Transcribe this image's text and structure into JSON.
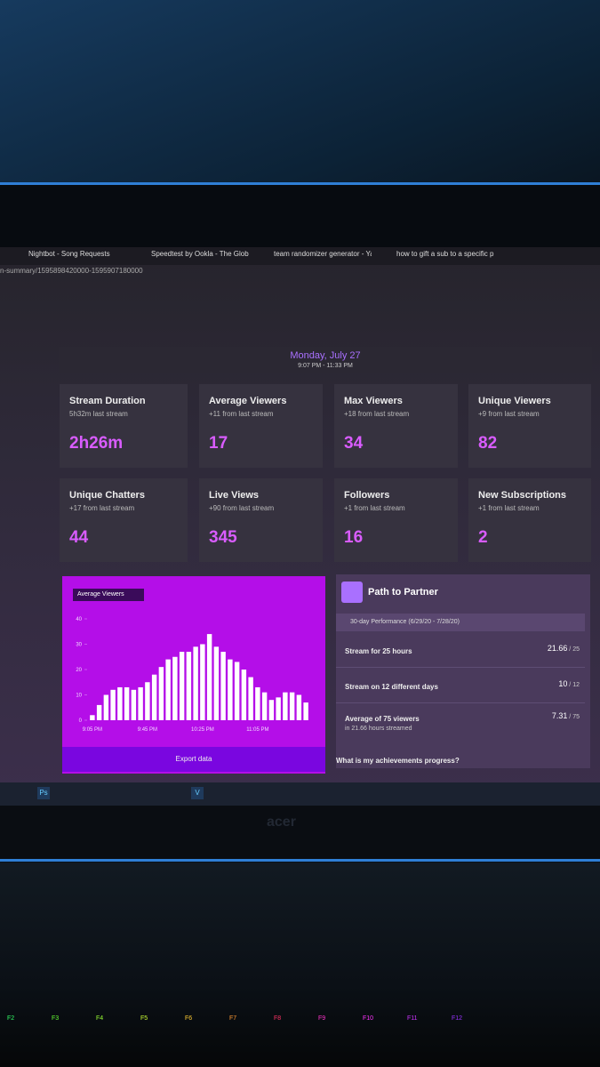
{
  "tabs": [
    "Nightbot - Song Requests",
    "Speedtest by Ookla - The Global",
    "team randomizer generator - Ya",
    "how to gift a sub to a specific p"
  ],
  "url": "n-summary/1595898420000-1595907180000",
  "header": {
    "date": "Monday, July 27",
    "time": "9:07 PM - 11:33 PM"
  },
  "stats": [
    {
      "title": "Stream Duration",
      "subtitle": "5h32m last stream",
      "value": "2h26m"
    },
    {
      "title": "Average Viewers",
      "subtitle": "+11 from last stream",
      "value": 17
    },
    {
      "title": "Max Viewers",
      "subtitle": "+18 from last stream",
      "value": 34
    },
    {
      "title": "Unique Viewers",
      "subtitle": "+9 from last stream",
      "value": 82
    },
    {
      "title": "Unique Chatters",
      "subtitle": "+17 from last stream",
      "value": 44
    },
    {
      "title": "Live Views",
      "subtitle": "+90 from last stream",
      "value": 345
    },
    {
      "title": "Followers",
      "subtitle": "+1 from last stream",
      "value": 16
    },
    {
      "title": "New Subscriptions",
      "subtitle": "+1 from last stream",
      "value": 2
    }
  ],
  "chart_data": {
    "type": "bar",
    "selector": "Average Viewers",
    "color": "#ffffff",
    "categories": [
      "9:05 PM",
      null,
      null,
      null,
      null,
      null,
      null,
      null,
      "9:45 PM",
      null,
      null,
      null,
      null,
      null,
      null,
      null,
      "10:25 PM",
      null,
      null,
      null,
      null,
      null,
      null,
      null,
      "11:05 PM",
      null,
      null,
      null,
      null,
      null,
      null,
      null
    ],
    "values": [
      2,
      6,
      10,
      12,
      13,
      13,
      12,
      13,
      15,
      18,
      21,
      24,
      25,
      27,
      27,
      29,
      30,
      34,
      29,
      27,
      24,
      23,
      20,
      17,
      13,
      11,
      8,
      9,
      11,
      11,
      10,
      7
    ],
    "ylim": [
      0,
      40
    ],
    "yticks": [
      0,
      10,
      20,
      30,
      40
    ],
    "button": "Export data"
  },
  "partner": {
    "title": "Path to Partner",
    "period": "30-day Performance (6/29/20 - 7/28/20)",
    "goals": [
      {
        "label": "Stream for 25 hours",
        "progress": 21.66,
        "target": 25
      },
      {
        "label": "Stream on 12 different days",
        "progress": 10,
        "target": 12
      },
      {
        "label": "Average of 75 viewers",
        "note": "in 21.66 hours streamed",
        "progress": 7.31,
        "target": 75
      }
    ]
  },
  "achievements_link": "What is my achievements progress?",
  "taskbar": [
    "Ps",
    "V"
  ],
  "bezel_logo": "acer",
  "keys": [
    "F2",
    "F3",
    "F4",
    "F5",
    "F6",
    "F7",
    "F8",
    "F9",
    "F10",
    "F11",
    "F12"
  ]
}
